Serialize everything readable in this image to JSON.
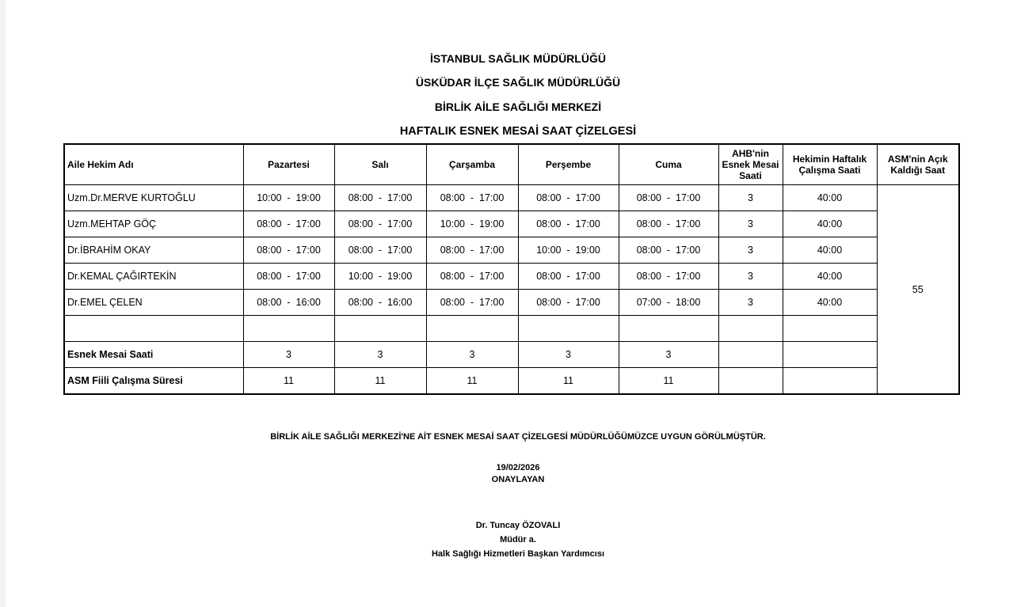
{
  "header": {
    "lines": [
      "İSTANBUL SAĞLIK MÜDÜRLÜĞÜ",
      "ÜSKÜDAR İLÇE SAĞLIK MÜDÜRLÜĞÜ",
      "BİRLİK AİLE SAĞLIĞI MERKEZİ",
      "HAFTALIK ESNEK MESAİ SAAT ÇİZELGESİ"
    ]
  },
  "table": {
    "columns": [
      "Aile Hekim Adı",
      "Pazartesi",
      "Salı",
      "Çarşamba",
      "Perşembe",
      "Cuma",
      "AHB'nin Esnek Mesai Saati",
      "Hekimin Haftalık Çalışma Saati",
      "ASM'nin Açık Kaldığı Saat"
    ],
    "rows": [
      {
        "name": "Uzm.Dr.MERVE KURTOĞLU",
        "days": [
          "10:00  -  19:00",
          "08:00  -  17:00",
          "08:00  -  17:00",
          "08:00  -  17:00",
          "08:00  -  17:00"
        ],
        "flex": "3",
        "weekly": "40:00"
      },
      {
        "name": "Uzm.MEHTAP GÖÇ",
        "days": [
          "08:00  -  17:00",
          "08:00  -  17:00",
          "10:00  -  19:00",
          "08:00  -  17:00",
          "08:00  -  17:00"
        ],
        "flex": "3",
        "weekly": "40:00"
      },
      {
        "name": "Dr.İBRAHİM OKAY",
        "days": [
          "08:00  -  17:00",
          "08:00  -  17:00",
          "08:00  -  17:00",
          "10:00  -  19:00",
          "08:00  -  17:00"
        ],
        "flex": "3",
        "weekly": "40:00"
      },
      {
        "name": "Dr.KEMAL ÇAĞIRTEKİN",
        "days": [
          "08:00  -  17:00",
          "10:00  -  19:00",
          "08:00  -  17:00",
          "08:00  -  17:00",
          "08:00  -  17:00"
        ],
        "flex": "3",
        "weekly": "40:00"
      },
      {
        "name": "Dr.EMEL ÇELEN",
        "days": [
          "08:00  -  16:00",
          "08:00  -  16:00",
          "08:00  -  17:00",
          "08:00  -  17:00",
          "07:00  -  18:00"
        ],
        "flex": "3",
        "weekly": "40:00"
      }
    ],
    "open_hours": "55",
    "summary": [
      {
        "label": "Esnek Mesai Saati",
        "values": [
          "3",
          "3",
          "3",
          "3",
          "3"
        ]
      },
      {
        "label": "ASM Fiili Çalışma Süresi",
        "values": [
          "11",
          "11",
          "11",
          "11",
          "11"
        ]
      }
    ]
  },
  "footer": {
    "approval": "BİRLİK AİLE SAĞLIĞI MERKEZİ'NE AİT ESNEK MESAİ SAAT ÇİZELGESİ MÜDÜRLÜĞÜMÜZCE UYGUN GÖRÜLMÜŞTÜR.",
    "date": "19/02/2026",
    "approver_label": "ONAYLAYAN",
    "signer_name": "Dr. Tuncay ÖZOVALI",
    "signer_role": "Müdür a.",
    "signer_title": "Halk Sağlığı Hizmetleri Başkan Yardımcısı"
  }
}
